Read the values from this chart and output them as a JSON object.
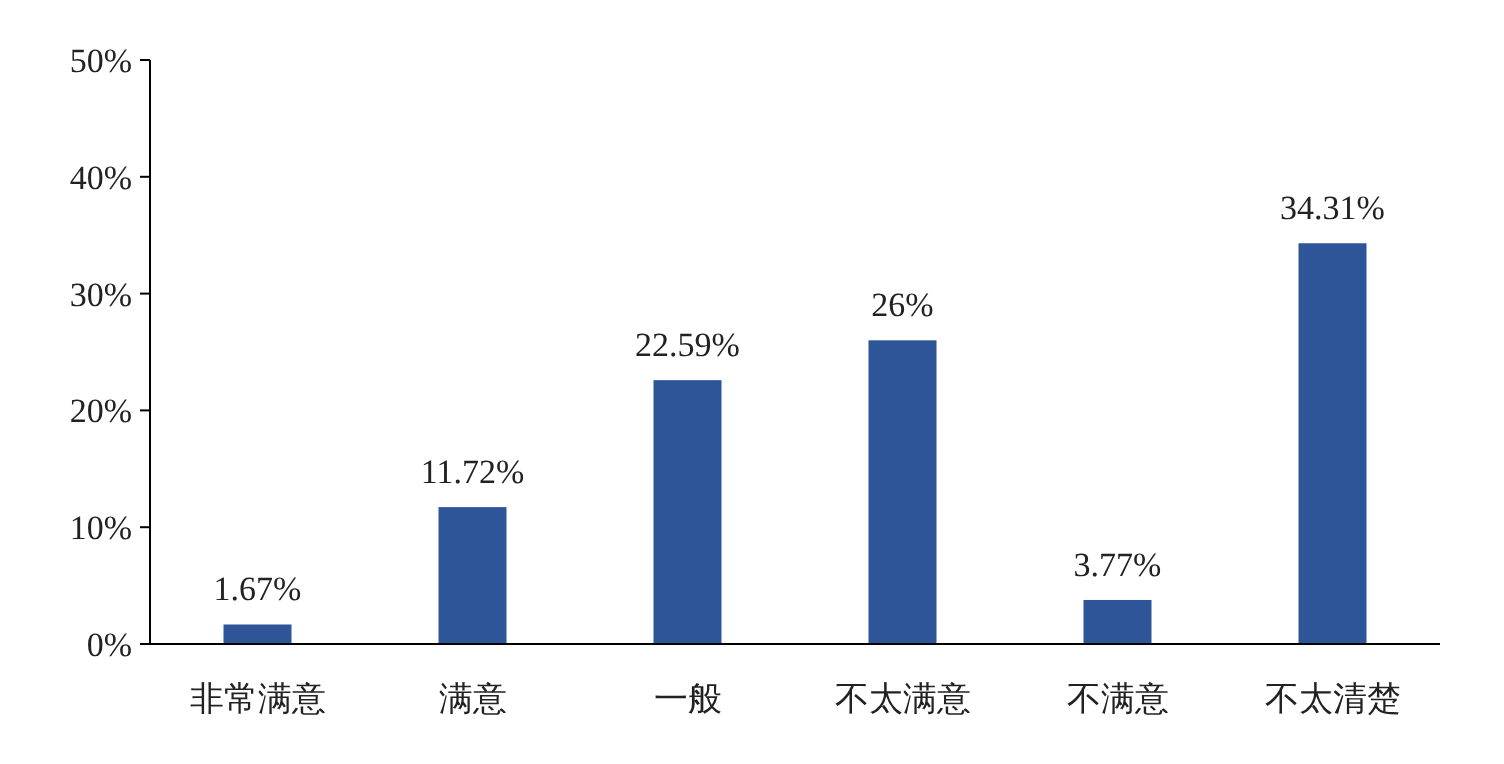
{
  "chart_data": {
    "type": "bar",
    "categories": [
      "非常满意",
      "满意",
      "一般",
      "不太满意",
      "不满意",
      "不太清楚"
    ],
    "values": [
      1.67,
      11.72,
      22.59,
      26,
      3.77,
      34.31
    ],
    "value_labels": [
      "1.67%",
      "11.72%",
      "22.59%",
      "26%",
      "3.77%",
      "34.31%"
    ],
    "color": "#2e5597",
    "ylim": [
      0,
      50
    ],
    "yticks": [
      {
        "value": 0,
        "label": "0%"
      },
      {
        "value": 10,
        "label": "10%"
      },
      {
        "value": 20,
        "label": "20%"
      },
      {
        "value": 30,
        "label": "30%"
      },
      {
        "value": 40,
        "label": "40%"
      },
      {
        "value": 50,
        "label": "50%"
      }
    ],
    "grid": false
  }
}
